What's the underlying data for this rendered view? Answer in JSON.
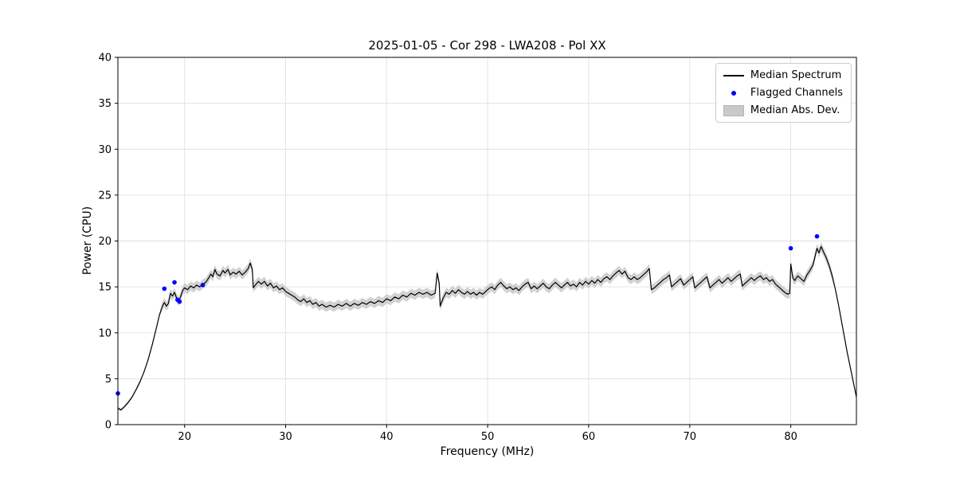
{
  "chart_data": {
    "type": "line",
    "title": "2025-01-05 - Cor 298 - LWA208 - Pol XX",
    "xlabel": "Frequency (MHz)",
    "ylabel": "Power (CPU)",
    "xlim": [
      13.4,
      86.5
    ],
    "ylim": [
      0,
      40
    ],
    "xticks": [
      20,
      30,
      40,
      50,
      60,
      70,
      80
    ],
    "yticks": [
      0,
      5,
      10,
      15,
      20,
      25,
      30,
      35,
      40
    ],
    "grid": true,
    "legend_position": "upper right",
    "legend": [
      "Median Spectrum",
      "Flagged Channels",
      "Median Abs. Dev."
    ],
    "colors": {
      "line": "#000000",
      "flagged": "#0000ff",
      "band": "#bfbfbf",
      "grid": "#e0e0e0",
      "spine": "#000000"
    },
    "mad": {
      "default": 0.5,
      "regions": [
        {
          "from": 13.4,
          "to": 17.6,
          "value": 0.15
        },
        {
          "from": 84.2,
          "to": 86.5,
          "value": 0.15
        }
      ]
    },
    "series": [
      {
        "name": "Median Spectrum",
        "points": [
          [
            13.4,
            1.8
          ],
          [
            13.7,
            1.6
          ],
          [
            14.0,
            1.9
          ],
          [
            14.4,
            2.4
          ],
          [
            14.8,
            3.0
          ],
          [
            15.2,
            3.8
          ],
          [
            15.6,
            4.7
          ],
          [
            16.0,
            5.8
          ],
          [
            16.4,
            7.1
          ],
          [
            16.8,
            8.7
          ],
          [
            17.2,
            10.5
          ],
          [
            17.5,
            11.9
          ],
          [
            17.8,
            12.9
          ],
          [
            18.0,
            13.3
          ],
          [
            18.2,
            12.9
          ],
          [
            18.4,
            13.2
          ],
          [
            18.6,
            14.3
          ],
          [
            18.8,
            14.0
          ],
          [
            19.0,
            14.4
          ],
          [
            19.2,
            13.8
          ],
          [
            19.4,
            13.4
          ],
          [
            19.6,
            13.9
          ],
          [
            19.8,
            14.6
          ],
          [
            20.0,
            14.9
          ],
          [
            20.3,
            14.7
          ],
          [
            20.6,
            15.1
          ],
          [
            20.9,
            14.9
          ],
          [
            21.2,
            15.2
          ],
          [
            21.5,
            15.0
          ],
          [
            21.8,
            15.3
          ],
          [
            22.1,
            15.5
          ],
          [
            22.4,
            16.0
          ],
          [
            22.6,
            16.4
          ],
          [
            22.8,
            16.1
          ],
          [
            23.0,
            16.9
          ],
          [
            23.2,
            16.4
          ],
          [
            23.5,
            16.2
          ],
          [
            23.8,
            16.8
          ],
          [
            24.0,
            16.5
          ],
          [
            24.3,
            16.9
          ],
          [
            24.5,
            16.3
          ],
          [
            24.8,
            16.6
          ],
          [
            25.1,
            16.4
          ],
          [
            25.4,
            16.7
          ],
          [
            25.7,
            16.3
          ],
          [
            26.0,
            16.6
          ],
          [
            26.3,
            17.0
          ],
          [
            26.5,
            17.6
          ],
          [
            26.7,
            16.9
          ],
          [
            26.8,
            14.9
          ],
          [
            27.0,
            15.2
          ],
          [
            27.3,
            15.6
          ],
          [
            27.6,
            15.3
          ],
          [
            27.9,
            15.6
          ],
          [
            28.2,
            15.1
          ],
          [
            28.5,
            15.4
          ],
          [
            28.8,
            14.9
          ],
          [
            29.1,
            15.1
          ],
          [
            29.4,
            14.7
          ],
          [
            29.7,
            14.9
          ],
          [
            30.0,
            14.5
          ],
          [
            30.3,
            14.3
          ],
          [
            30.6,
            14.1
          ],
          [
            30.9,
            13.9
          ],
          [
            31.2,
            13.6
          ],
          [
            31.5,
            13.4
          ],
          [
            31.8,
            13.7
          ],
          [
            32.1,
            13.3
          ],
          [
            32.4,
            13.5
          ],
          [
            32.7,
            13.1
          ],
          [
            33.0,
            13.3
          ],
          [
            33.3,
            12.9
          ],
          [
            33.6,
            13.1
          ],
          [
            34.0,
            12.8
          ],
          [
            34.4,
            13.0
          ],
          [
            34.8,
            12.8
          ],
          [
            35.2,
            13.1
          ],
          [
            35.6,
            12.9
          ],
          [
            36.0,
            13.2
          ],
          [
            36.4,
            12.9
          ],
          [
            36.8,
            13.2
          ],
          [
            37.2,
            13.0
          ],
          [
            37.6,
            13.3
          ],
          [
            38.0,
            13.1
          ],
          [
            38.4,
            13.4
          ],
          [
            38.8,
            13.2
          ],
          [
            39.2,
            13.5
          ],
          [
            39.6,
            13.3
          ],
          [
            40.0,
            13.7
          ],
          [
            40.4,
            13.5
          ],
          [
            40.8,
            13.9
          ],
          [
            41.2,
            13.7
          ],
          [
            41.6,
            14.1
          ],
          [
            42.0,
            13.9
          ],
          [
            42.4,
            14.3
          ],
          [
            42.8,
            14.1
          ],
          [
            43.2,
            14.4
          ],
          [
            43.6,
            14.2
          ],
          [
            44.0,
            14.4
          ],
          [
            44.4,
            14.1
          ],
          [
            44.8,
            14.3
          ],
          [
            45.0,
            16.5
          ],
          [
            45.2,
            15.4
          ],
          [
            45.3,
            12.9
          ],
          [
            45.6,
            13.8
          ],
          [
            45.9,
            14.4
          ],
          [
            46.2,
            14.2
          ],
          [
            46.5,
            14.6
          ],
          [
            46.8,
            14.3
          ],
          [
            47.1,
            14.7
          ],
          [
            47.4,
            14.4
          ],
          [
            47.7,
            14.2
          ],
          [
            48.0,
            14.5
          ],
          [
            48.3,
            14.2
          ],
          [
            48.6,
            14.4
          ],
          [
            48.9,
            14.1
          ],
          [
            49.2,
            14.4
          ],
          [
            49.5,
            14.2
          ],
          [
            49.8,
            14.5
          ],
          [
            50.1,
            14.8
          ],
          [
            50.4,
            15.0
          ],
          [
            50.7,
            14.7
          ],
          [
            51.0,
            15.2
          ],
          [
            51.3,
            15.5
          ],
          [
            51.6,
            15.1
          ],
          [
            51.9,
            14.8
          ],
          [
            52.2,
            15.0
          ],
          [
            52.5,
            14.7
          ],
          [
            52.8,
            14.9
          ],
          [
            53.1,
            14.6
          ],
          [
            53.4,
            15.0
          ],
          [
            53.7,
            15.3
          ],
          [
            54.0,
            15.5
          ],
          [
            54.3,
            14.8
          ],
          [
            54.6,
            15.1
          ],
          [
            54.9,
            14.8
          ],
          [
            55.2,
            15.1
          ],
          [
            55.5,
            15.4
          ],
          [
            55.8,
            15.0
          ],
          [
            56.1,
            14.8
          ],
          [
            56.4,
            15.2
          ],
          [
            56.7,
            15.5
          ],
          [
            57.0,
            15.2
          ],
          [
            57.3,
            14.9
          ],
          [
            57.6,
            15.2
          ],
          [
            57.9,
            15.5
          ],
          [
            58.2,
            15.1
          ],
          [
            58.5,
            15.3
          ],
          [
            58.8,
            15.0
          ],
          [
            59.1,
            15.5
          ],
          [
            59.4,
            15.2
          ],
          [
            59.7,
            15.6
          ],
          [
            60.0,
            15.3
          ],
          [
            60.3,
            15.7
          ],
          [
            60.6,
            15.4
          ],
          [
            60.9,
            15.8
          ],
          [
            61.2,
            15.5
          ],
          [
            61.5,
            15.9
          ],
          [
            61.8,
            16.1
          ],
          [
            62.1,
            15.8
          ],
          [
            62.4,
            16.2
          ],
          [
            62.7,
            16.5
          ],
          [
            63.0,
            16.8
          ],
          [
            63.3,
            16.4
          ],
          [
            63.6,
            16.7
          ],
          [
            63.9,
            16.0
          ],
          [
            64.2,
            15.8
          ],
          [
            64.5,
            16.1
          ],
          [
            64.8,
            15.8
          ],
          [
            65.1,
            16.0
          ],
          [
            65.4,
            16.3
          ],
          [
            65.7,
            16.6
          ],
          [
            66.0,
            17.0
          ],
          [
            66.2,
            14.7
          ],
          [
            66.5,
            14.9
          ],
          [
            66.8,
            15.2
          ],
          [
            67.1,
            15.5
          ],
          [
            67.4,
            15.8
          ],
          [
            67.7,
            16.0
          ],
          [
            68.0,
            16.3
          ],
          [
            68.2,
            15.0
          ],
          [
            68.5,
            15.3
          ],
          [
            68.8,
            15.6
          ],
          [
            69.1,
            15.9
          ],
          [
            69.4,
            15.2
          ],
          [
            69.7,
            15.5
          ],
          [
            70.0,
            15.8
          ],
          [
            70.3,
            16.1
          ],
          [
            70.5,
            14.9
          ],
          [
            70.8,
            15.2
          ],
          [
            71.1,
            15.5
          ],
          [
            71.4,
            15.8
          ],
          [
            71.7,
            16.1
          ],
          [
            72.0,
            14.9
          ],
          [
            72.3,
            15.2
          ],
          [
            72.6,
            15.5
          ],
          [
            72.9,
            15.8
          ],
          [
            73.2,
            15.4
          ],
          [
            73.5,
            15.7
          ],
          [
            73.8,
            16.0
          ],
          [
            74.1,
            15.6
          ],
          [
            74.4,
            15.9
          ],
          [
            74.7,
            16.2
          ],
          [
            75.0,
            16.4
          ],
          [
            75.2,
            15.1
          ],
          [
            75.5,
            15.4
          ],
          [
            75.8,
            15.7
          ],
          [
            76.1,
            16.0
          ],
          [
            76.4,
            15.7
          ],
          [
            76.7,
            16.0
          ],
          [
            77.0,
            16.2
          ],
          [
            77.3,
            15.8
          ],
          [
            77.6,
            16.0
          ],
          [
            77.9,
            15.6
          ],
          [
            78.2,
            15.8
          ],
          [
            78.5,
            15.3
          ],
          [
            78.8,
            15.0
          ],
          [
            79.1,
            14.7
          ],
          [
            79.4,
            14.4
          ],
          [
            79.7,
            14.2
          ],
          [
            79.9,
            14.3
          ],
          [
            80.0,
            17.5
          ],
          [
            80.2,
            16.0
          ],
          [
            80.4,
            15.7
          ],
          [
            80.7,
            16.2
          ],
          [
            81.0,
            15.9
          ],
          [
            81.3,
            15.6
          ],
          [
            81.6,
            16.3
          ],
          [
            81.9,
            16.8
          ],
          [
            82.2,
            17.4
          ],
          [
            82.4,
            18.3
          ],
          [
            82.6,
            19.2
          ],
          [
            82.8,
            18.7
          ],
          [
            83.0,
            19.4
          ],
          [
            83.2,
            18.9
          ],
          [
            83.5,
            18.2
          ],
          [
            83.8,
            17.3
          ],
          [
            84.1,
            16.2
          ],
          [
            84.4,
            14.8
          ],
          [
            84.7,
            13.2
          ],
          [
            85.0,
            11.4
          ],
          [
            85.3,
            9.6
          ],
          [
            85.6,
            7.8
          ],
          [
            85.9,
            6.2
          ],
          [
            86.2,
            4.6
          ],
          [
            86.5,
            3.0
          ]
        ]
      }
    ],
    "flagged_channels": [
      [
        13.4,
        3.4
      ],
      [
        18.0,
        14.8
      ],
      [
        19.0,
        15.5
      ],
      [
        19.3,
        13.6
      ],
      [
        19.5,
        13.4
      ],
      [
        21.8,
        15.2
      ],
      [
        80.0,
        19.2
      ],
      [
        82.6,
        20.5
      ]
    ]
  }
}
